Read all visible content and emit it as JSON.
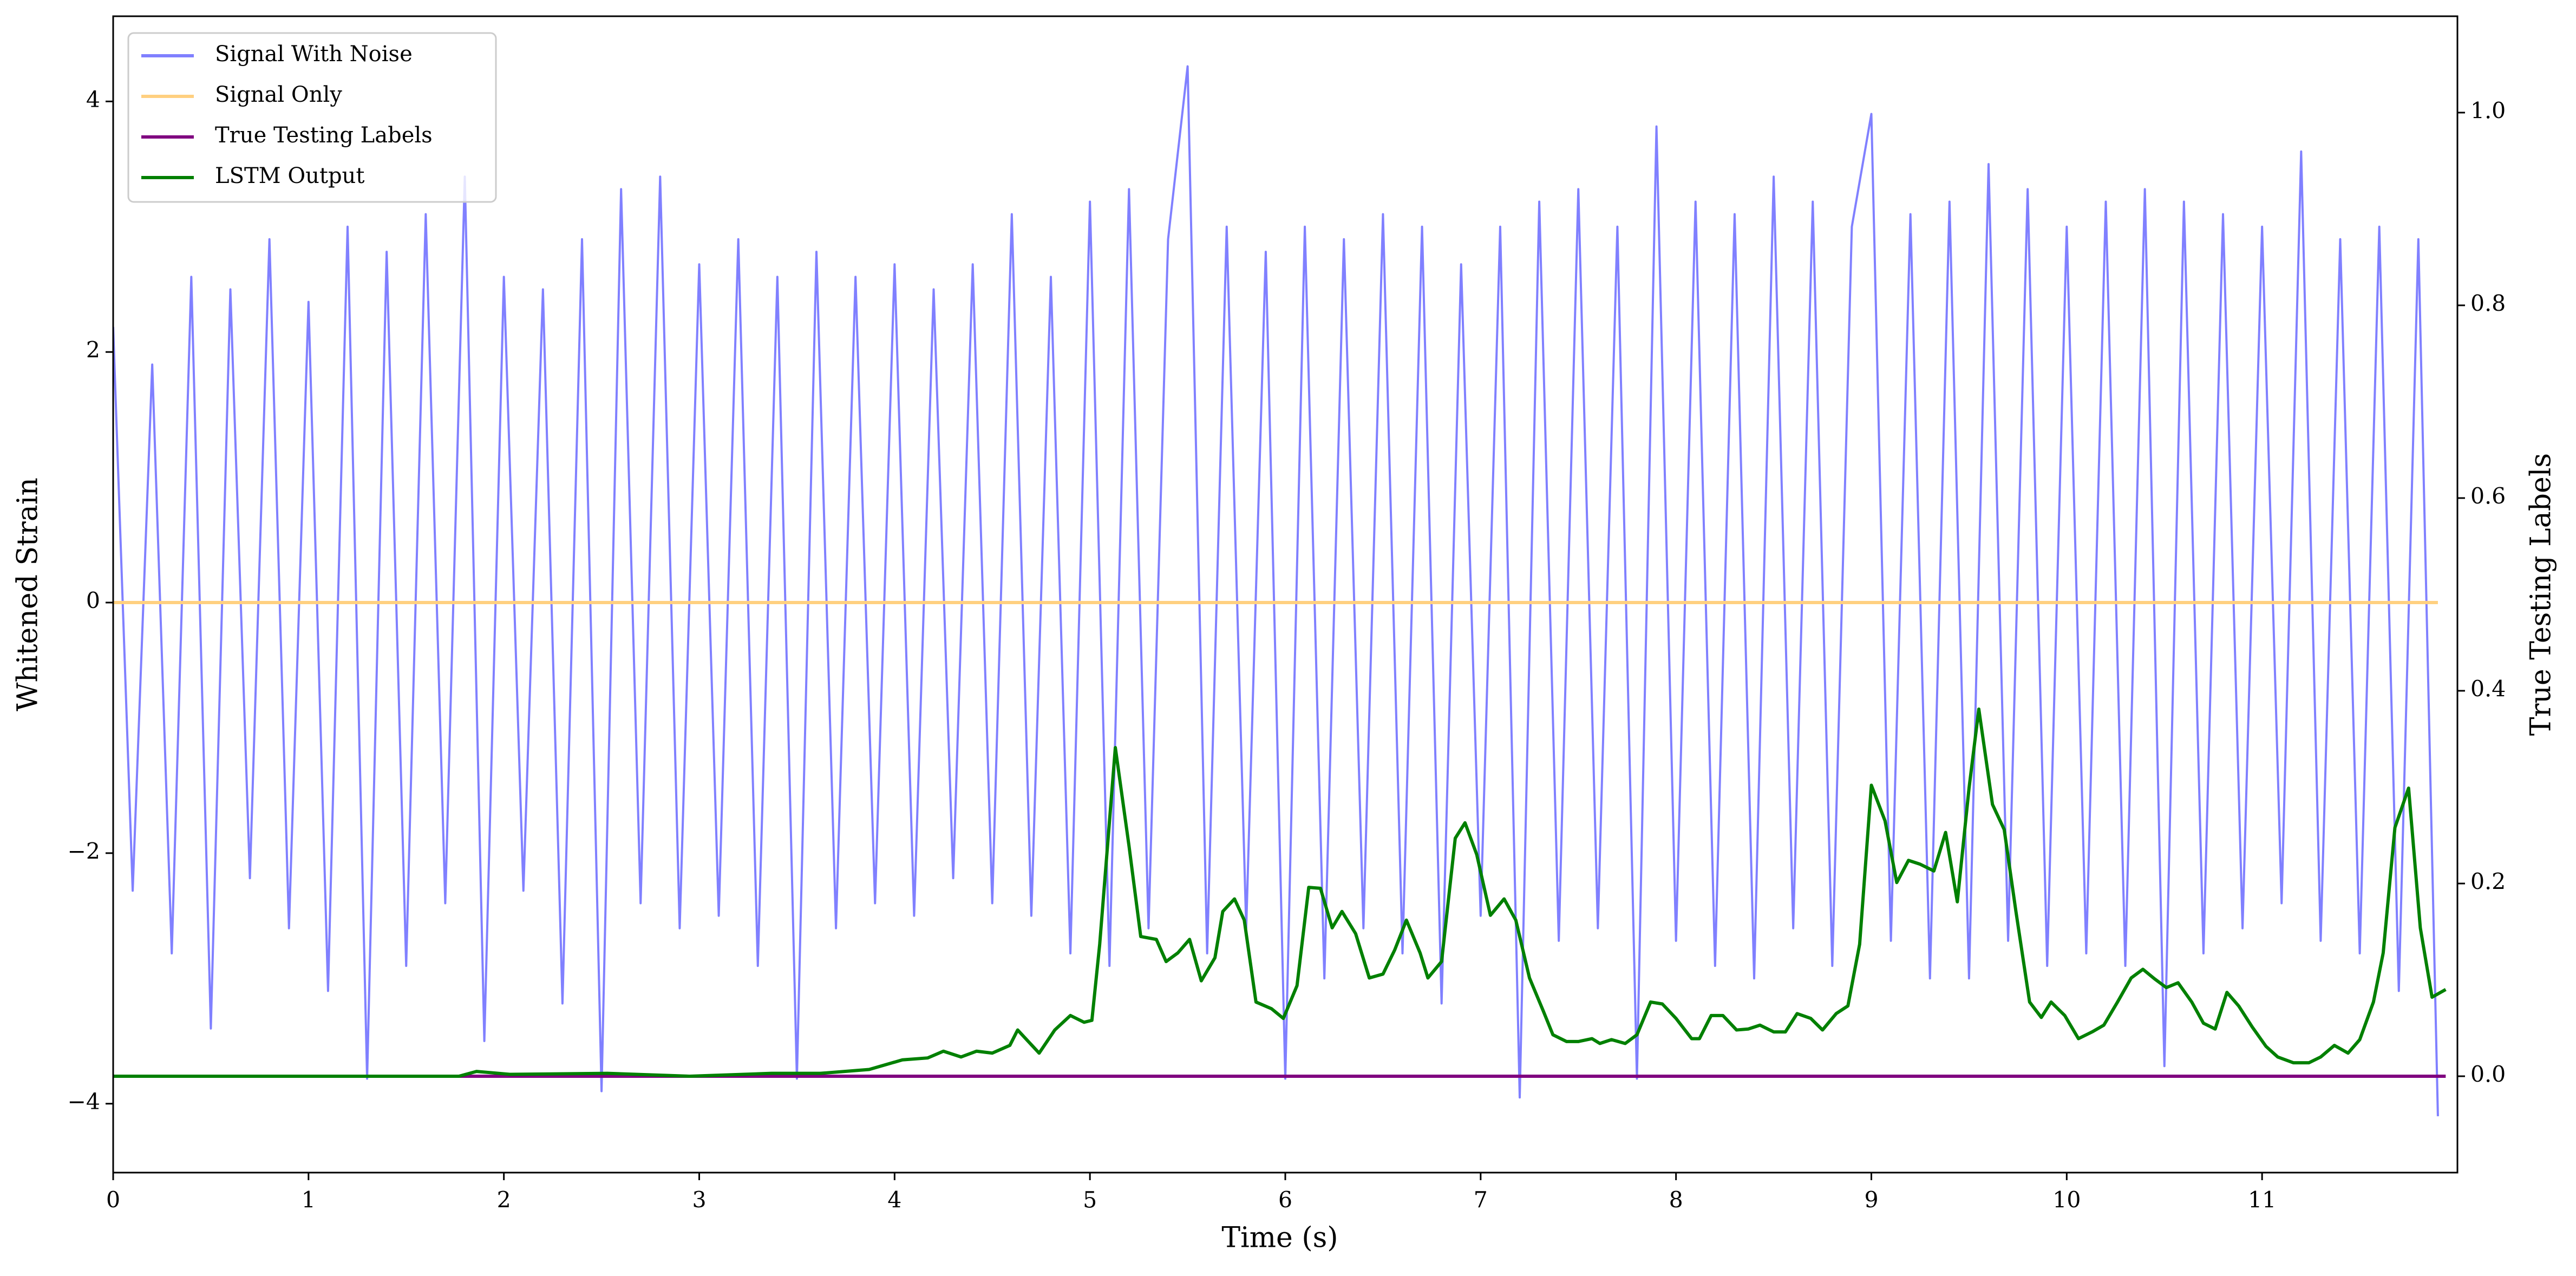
{
  "chart_data": {
    "type": "line",
    "xlabel": "Time (s)",
    "ylabel": "Whitened Strain",
    "y2label": "True Testing Labels",
    "xlim": [
      0,
      12
    ],
    "xticks": [
      0,
      1,
      2,
      3,
      4,
      5,
      6,
      7,
      8,
      9,
      10,
      11
    ],
    "ylim": [
      -4.55,
      4.68
    ],
    "yticks": [
      {
        "value": -4,
        "label": "−4"
      },
      {
        "value": -2,
        "label": "−2"
      },
      0,
      2,
      4
    ],
    "y2lim": [
      -0.1,
      1.1
    ],
    "y2ticks": [
      {
        "value": 0,
        "label": "0.0"
      },
      0.2,
      0.4,
      0.6,
      0.8,
      {
        "value": 1,
        "label": "1.0"
      }
    ],
    "legend": "upper left",
    "series": [
      {
        "name": "Signal With Noise",
        "color": "#8080ff",
        "x": [
          0,
          0.1,
          0.2,
          0.3,
          0.4,
          0.5,
          0.6,
          0.7,
          0.8,
          0.9,
          1,
          1.1,
          1.2,
          1.3,
          1.4,
          1.5,
          1.6,
          1.7,
          1.8,
          1.9,
          2,
          2.1,
          2.2,
          2.3,
          2.4,
          2.5,
          2.6,
          2.7,
          2.8,
          2.9,
          3,
          3.1,
          3.2,
          3.3,
          3.4,
          3.5,
          3.6,
          3.7,
          3.8,
          3.9,
          4,
          4.1,
          4.2,
          4.3,
          4.4,
          4.5,
          4.6,
          4.7,
          4.8,
          4.9,
          5,
          5.1,
          5.2,
          5.3,
          5.4,
          5.5,
          5.6,
          5.7,
          5.8,
          5.9,
          6,
          6.1,
          6.2,
          6.3,
          6.4,
          6.5,
          6.6,
          6.7,
          6.8,
          6.9,
          7,
          7.1,
          7.2,
          7.3,
          7.4,
          7.5,
          7.6,
          7.7,
          7.8,
          7.9,
          8,
          8.1,
          8.2,
          8.3,
          8.4,
          8.5,
          8.6,
          8.7,
          8.8,
          8.9,
          9,
          9.1,
          9.2,
          9.3,
          9.4,
          9.5,
          9.6,
          9.7,
          9.8,
          9.9,
          10,
          10.1,
          10.2,
          10.3,
          10.4,
          10.5,
          10.6,
          10.7,
          10.8,
          10.9,
          11,
          11.1,
          11.2,
          11.3,
          11.4,
          11.5,
          11.6,
          11.7,
          11.8,
          11.9
        ],
        "values": [
          2.2,
          -2.3,
          1.9,
          -2.8,
          2.6,
          -3.4,
          2.5,
          -2.2,
          2.9,
          -2.6,
          2.4,
          -3.1,
          3.0,
          -3.8,
          2.8,
          -2.9,
          3.1,
          -2.4,
          3.4,
          -3.5,
          2.6,
          -2.3,
          2.5,
          -3.2,
          2.9,
          -3.9,
          3.3,
          -2.4,
          3.4,
          -2.6,
          2.7,
          -2.5,
          2.9,
          -2.9,
          2.6,
          -3.8,
          2.8,
          -2.6,
          2.6,
          -2.4,
          2.7,
          -2.5,
          2.5,
          -2.2,
          2.7,
          -2.4,
          3.1,
          -2.5,
          2.6,
          -2.8,
          3.2,
          -2.9,
          3.3,
          -2.6,
          2.9,
          4.28,
          -2.8,
          3.0,
          -2.6,
          2.8,
          -3.8,
          3.0,
          -3.0,
          2.9,
          -2.6,
          3.1,
          -2.8,
          3.0,
          -3.2,
          2.7,
          -2.5,
          3.0,
          -3.95,
          3.2,
          -2.7,
          3.3,
          -2.6,
          3.0,
          -3.8,
          3.8,
          -2.7,
          3.2,
          -2.9,
          3.1,
          -3.0,
          3.4,
          -2.6,
          3.2,
          -2.9,
          3.0,
          3.9,
          -2.7,
          3.1,
          -3.0,
          3.2,
          -3.0,
          3.5,
          -2.7,
          3.3,
          -2.9,
          3.0,
          -2.8,
          3.2,
          -2.9,
          3.3,
          -3.7,
          3.2,
          -2.8,
          3.1,
          -2.6,
          3.0,
          -2.4,
          3.6,
          -2.7,
          2.9,
          -2.8,
          3.0,
          -3.1,
          2.9,
          -4.1
        ]
      },
      {
        "name": "Signal Only",
        "color": "#ffd080",
        "x": [
          0,
          11.9
        ],
        "values": [
          0,
          0
        ]
      },
      {
        "name": "True Testing Labels",
        "color": "#800080",
        "axis": "y2",
        "x": [
          0,
          11.94
        ],
        "values": [
          0,
          0
        ]
      },
      {
        "name": "LSTM Output",
        "color": "#008000",
        "axis": "y2",
        "x": [
          0,
          0.93,
          1.77,
          1.86,
          2.03,
          2.53,
          2.95,
          3.37,
          3.62,
          3.87,
          4.04,
          4.17,
          4.25,
          4.34,
          4.42,
          4.5,
          4.59,
          4.63,
          4.74,
          4.82,
          4.9,
          4.97,
          5.01,
          5.05,
          5.13,
          5.2,
          5.26,
          5.34,
          5.39,
          5.45,
          5.51,
          5.57,
          5.64,
          5.68,
          5.74,
          5.79,
          5.85,
          5.93,
          5.99,
          6.06,
          6.12,
          6.18,
          6.24,
          6.29,
          6.36,
          6.43,
          6.5,
          6.56,
          6.62,
          6.69,
          6.73,
          6.8,
          6.87,
          6.92,
          6.98,
          7.05,
          7.12,
          7.18,
          7.25,
          7.32,
          7.37,
          7.44,
          7.5,
          7.57,
          7.61,
          7.67,
          7.74,
          7.8,
          7.87,
          7.93,
          8,
          8.08,
          8.12,
          8.18,
          8.24,
          8.31,
          8.37,
          8.43,
          8.5,
          8.56,
          8.62,
          8.69,
          8.75,
          8.82,
          8.88,
          8.94,
          9,
          9.07,
          9.13,
          9.19,
          9.25,
          9.32,
          9.38,
          9.44,
          9.5,
          9.55,
          9.62,
          9.68,
          9.74,
          9.81,
          9.87,
          9.92,
          9.99,
          10.06,
          10.13,
          10.19,
          10.26,
          10.33,
          10.39,
          10.45,
          10.51,
          10.57,
          10.64,
          10.7,
          10.76,
          10.82,
          10.88,
          10.95,
          11.02,
          11.08,
          11.16,
          11.24,
          11.3,
          11.37,
          11.44,
          11.5,
          11.57,
          11.62,
          11.68,
          11.75,
          11.81,
          11.87,
          11.94
        ],
        "values": [
          0,
          0,
          0,
          0.005,
          0.002,
          0.003,
          0,
          0.003,
          0.003,
          0.007,
          0.017,
          0.019,
          0.026,
          0.02,
          0.026,
          0.024,
          0.032,
          0.048,
          0.024,
          0.048,
          0.063,
          0.056,
          0.058,
          0.137,
          0.341,
          0.239,
          0.145,
          0.142,
          0.119,
          0.128,
          0.142,
          0.099,
          0.123,
          0.171,
          0.184,
          0.162,
          0.077,
          0.07,
          0.06,
          0.094,
          0.196,
          0.195,
          0.154,
          0.171,
          0.148,
          0.102,
          0.106,
          0.131,
          0.162,
          0.128,
          0.102,
          0.119,
          0.247,
          0.263,
          0.23,
          0.167,
          0.184,
          0.162,
          0.102,
          0.068,
          0.043,
          0.036,
          0.036,
          0.039,
          0.034,
          0.038,
          0.034,
          0.043,
          0.077,
          0.075,
          0.06,
          0.039,
          0.039,
          0.063,
          0.063,
          0.048,
          0.049,
          0.053,
          0.046,
          0.046,
          0.065,
          0.06,
          0.048,
          0.065,
          0.073,
          0.137,
          0.302,
          0.265,
          0.201,
          0.224,
          0.22,
          0.213,
          0.253,
          0.181,
          0.299,
          0.381,
          0.282,
          0.256,
          0.171,
          0.077,
          0.061,
          0.077,
          0.063,
          0.039,
          0.046,
          0.053,
          0.077,
          0.102,
          0.111,
          0.101,
          0.092,
          0.097,
          0.077,
          0.055,
          0.049,
          0.087,
          0.073,
          0.051,
          0.031,
          0.02,
          0.014,
          0.014,
          0.02,
          0.032,
          0.024,
          0.038,
          0.077,
          0.128,
          0.258,
          0.299,
          0.154,
          0.082,
          0.09
        ]
      }
    ]
  }
}
